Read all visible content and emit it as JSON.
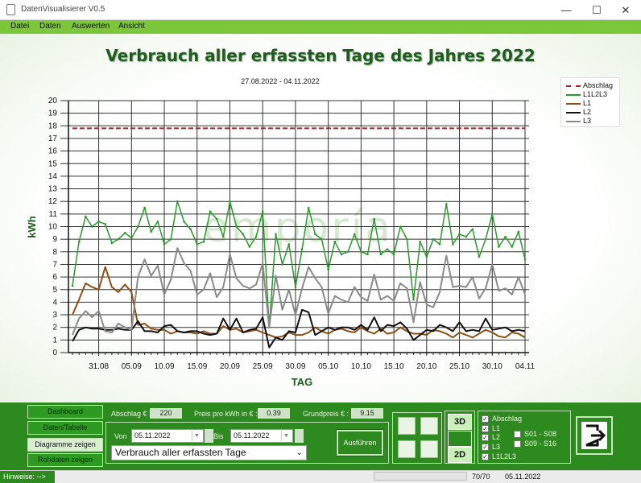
{
  "window": {
    "title": "DatenVisualisierer V0.5",
    "minimize": "—",
    "maximize": "☐",
    "close": "✕"
  },
  "menu": [
    "Datei",
    "Daten",
    "Auswerten",
    "Ansicht"
  ],
  "chart_title": "Verbrauch aller erfassten Tage des Jahres 2022",
  "date_range": "27.08.2022 - 04.11.2022",
  "watermark": "emporía",
  "chart_data": {
    "type": "line",
    "xlabel": "TAG",
    "ylabel": "kWh",
    "ylim": [
      0,
      20
    ],
    "yticks": [
      "0",
      "1",
      "2",
      "3",
      "4",
      "5",
      "6",
      "7",
      "8",
      "9",
      "10",
      "11",
      "12",
      "13",
      "14",
      "15",
      "16",
      "17",
      "18",
      "19",
      "20"
    ],
    "xticks": [
      "31.08",
      "05.09",
      "10.09",
      "15.09",
      "20.09",
      "25.09",
      "30.09",
      "05.10",
      "10.10",
      "15.10",
      "20.10",
      "25.10",
      "30.10",
      "04.11"
    ],
    "x_start": "27.08.2022",
    "x_end": "04.11.2022",
    "grid": true,
    "legend_position": "top-right",
    "series": [
      {
        "name": "Abschlag",
        "color": "#b02020",
        "style": "dashed",
        "values": [
          17.8,
          17.8,
          17.8,
          17.8,
          17.8,
          17.8,
          17.8,
          17.8,
          17.8,
          17.8,
          17.8,
          17.8,
          17.8,
          17.8,
          17.8,
          17.8,
          17.8,
          17.8,
          17.8,
          17.8,
          17.8,
          17.8,
          17.8,
          17.8,
          17.8,
          17.8,
          17.8,
          17.8,
          17.8,
          17.8,
          17.8,
          17.8,
          17.8,
          17.8,
          17.8,
          17.8,
          17.8,
          17.8,
          17.8,
          17.8,
          17.8,
          17.8,
          17.8,
          17.8,
          17.8,
          17.8,
          17.8,
          17.8,
          17.8,
          17.8,
          17.8,
          17.8,
          17.8,
          17.8,
          17.8,
          17.8,
          17.8,
          17.8,
          17.8,
          17.8,
          17.8,
          17.8,
          17.8,
          17.8,
          17.8,
          17.8,
          17.8,
          17.8,
          17.8,
          17.8
        ]
      },
      {
        "name": "L1L2L3",
        "color": "#2a9a2a",
        "style": "solid",
        "values": [
          5.3,
          8.8,
          10.8,
          10.0,
          10.4,
          10.2,
          8.7,
          9.0,
          9.5,
          9.1,
          10.0,
          11.5,
          9.6,
          10.4,
          8.6,
          9.0,
          12.0,
          10.4,
          9.8,
          8.6,
          8.8,
          11.2,
          10.6,
          9.2,
          12.0,
          10.0,
          9.4,
          8.4,
          9.2,
          11.2,
          2.0,
          9.4,
          7.0,
          8.6,
          5.2,
          8.2,
          11.5,
          9.4,
          9.0,
          6.6,
          8.8,
          7.8,
          8.0,
          9.4,
          8.0,
          7.8,
          10.6,
          7.8,
          8.2,
          7.8,
          10.0,
          9.0,
          4.2,
          8.8,
          7.6,
          9.0,
          8.6,
          11.8,
          8.6,
          9.4,
          9.2,
          9.8,
          7.6,
          9.0,
          11.0,
          8.4,
          9.2,
          8.4,
          9.6,
          7.4
        ]
      },
      {
        "name": "L1",
        "color": "#8b4f12",
        "style": "solid",
        "values": [
          3.0,
          4.2,
          5.5,
          5.2,
          5.0,
          6.8,
          5.2,
          4.8,
          5.4,
          4.8,
          2.2,
          2.3,
          1.9,
          1.8,
          1.8,
          1.5,
          1.7,
          1.6,
          1.6,
          1.5,
          1.7,
          1.5,
          1.5,
          2.1,
          1.8,
          1.9,
          1.6,
          1.7,
          1.8,
          1.6,
          1.4,
          1.2,
          1.3,
          1.6,
          1.4,
          1.4,
          1.6,
          2.0,
          1.7,
          1.5,
          1.8,
          1.9,
          1.7,
          1.6,
          2.0,
          1.7,
          1.5,
          1.9,
          1.5,
          1.6,
          2.0,
          1.7,
          1.5,
          1.5,
          1.4,
          1.8,
          1.7,
          1.5,
          1.2,
          1.6,
          1.4,
          1.2,
          1.5,
          1.8,
          1.6,
          1.3,
          1.2,
          1.6,
          1.5,
          1.2
        ]
      },
      {
        "name": "L2",
        "color": "#111111",
        "style": "solid",
        "values": [
          0.9,
          1.8,
          2.0,
          1.9,
          1.9,
          1.8,
          1.8,
          1.9,
          1.8,
          1.8,
          2.5,
          1.7,
          1.7,
          1.6,
          2.1,
          2.2,
          1.7,
          1.6,
          1.7,
          1.7,
          1.5,
          1.4,
          1.5,
          2.7,
          1.8,
          2.7,
          1.6,
          1.8,
          1.9,
          2.8,
          0.4,
          1.2,
          1.0,
          1.7,
          1.6,
          3.4,
          3.2,
          1.4,
          1.7,
          2.0,
          1.8,
          2.0,
          2.0,
          1.8,
          2.2,
          1.8,
          2.8,
          1.7,
          2.2,
          2.1,
          2.4,
          1.9,
          1.0,
          1.4,
          1.8,
          1.7,
          2.2,
          2.0,
          1.7,
          2.4,
          1.7,
          1.8,
          1.7,
          2.7,
          1.8,
          1.9,
          2.0,
          1.7,
          1.8,
          1.7
        ]
      },
      {
        "name": "L3",
        "color": "#8a8a8a",
        "style": "solid",
        "values": [
          1.4,
          2.7,
          3.3,
          2.8,
          3.3,
          1.7,
          1.6,
          2.3,
          2.0,
          1.8,
          6.0,
          7.4,
          6.1,
          6.9,
          4.6,
          5.8,
          8.3,
          7.1,
          6.5,
          4.6,
          5.0,
          6.3,
          4.4,
          5.2,
          7.8,
          5.9,
          5.3,
          5.1,
          5.4,
          7.1,
          2.0,
          6.1,
          3.4,
          5.0,
          3.0,
          5.1,
          6.8,
          5.9,
          5.2,
          3.1,
          4.5,
          4.2,
          4.0,
          5.2,
          4.4,
          4.1,
          6.2,
          4.2,
          4.5,
          4.1,
          5.5,
          5.1,
          2.4,
          5.6,
          3.8,
          3.6,
          4.8,
          7.7,
          5.2,
          5.3,
          5.2,
          6.0,
          4.3,
          5.1,
          7.0,
          4.9,
          5.1,
          4.6,
          6.0,
          4.6
        ]
      }
    ]
  },
  "nav": {
    "dashboard": "Dashboard",
    "table": "Daten/Tabelle",
    "charts": "Diagramme zeigen",
    "raw": "Rohdaten zeigen"
  },
  "info": {
    "abschlag_label": "Abschlag € :",
    "abschlag_value": "220",
    "preis_label": "Preis pro kWh in € :",
    "preis_value": "0.39",
    "grundpreis_label": "Grundpreis € :",
    "grundpreis_value": "9.15"
  },
  "filter": {
    "von_label": "Von",
    "von_value": "05.11.2022",
    "bis_label": "Bis",
    "bis_value": "05.11.2022",
    "dropdown_value": "Verbrauch aller erfassten Tage",
    "execute": "Ausführen"
  },
  "modes": {
    "three_d": "3D",
    "two_d": "2D"
  },
  "checkboxes": {
    "abschlag": "Abschlag",
    "l1": "L1",
    "l2": "L2",
    "l3": "L3",
    "l1l2l3": "L1L2L3",
    "s01": "S01 - S08",
    "s09": "S09 - S16"
  },
  "status": {
    "hint": "Hinweise:  -->",
    "count": "70/70",
    "date": "05.11.2022"
  }
}
